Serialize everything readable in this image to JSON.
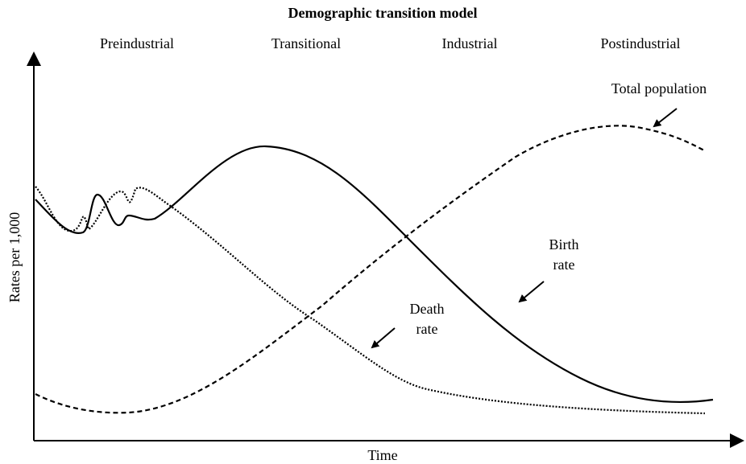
{
  "title": "Demographic transition model",
  "stages": [
    "Preindustrial",
    "Transitional",
    "Industrial",
    "Postindustrial"
  ],
  "axes": {
    "y": "Rates per 1,000",
    "x": "Time"
  },
  "annotations": {
    "total_population": "Total population",
    "birth_rate": [
      "Birth",
      "rate"
    ],
    "death_rate": [
      "Death",
      "rate"
    ]
  }
}
